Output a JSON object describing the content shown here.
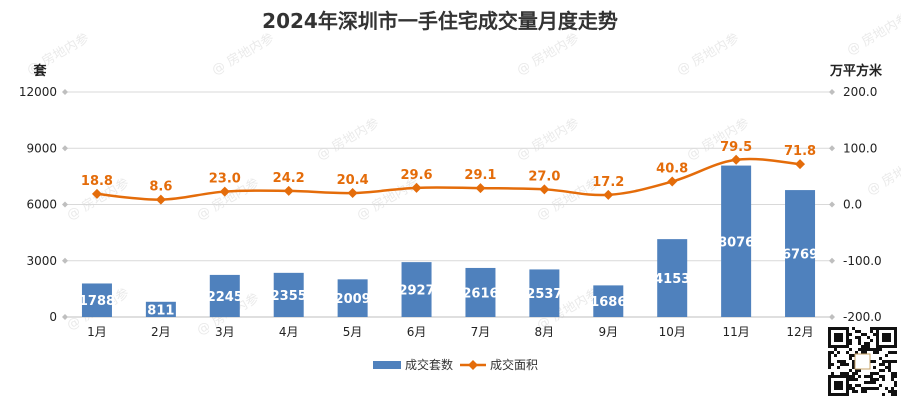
{
  "chart_data": {
    "type": "bar+line",
    "title": "2024年深圳市一手住宅成交量月度走势",
    "categories": [
      "1月",
      "2月",
      "3月",
      "4月",
      "5月",
      "6月",
      "7月",
      "8月",
      "9月",
      "10月",
      "11月",
      "12月"
    ],
    "series": [
      {
        "name": "成交套数",
        "type": "bar",
        "axis": "left",
        "color": "#4F81BD",
        "values": [
          1788,
          811,
          2245,
          2355,
          2009,
          2927,
          2616,
          2537,
          1686,
          4153,
          8076,
          6769
        ]
      },
      {
        "name": "成交面积",
        "type": "line",
        "axis": "right",
        "color": "#E46C0A",
        "values": [
          18.8,
          8.6,
          23.0,
          24.2,
          20.4,
          29.6,
          29.1,
          27.0,
          17.2,
          40.8,
          79.5,
          71.8
        ]
      }
    ],
    "left_axis": {
      "unit": "套",
      "ticks": [
        0,
        3000,
        6000,
        9000,
        12000
      ],
      "range": [
        0,
        12000
      ]
    },
    "right_axis": {
      "unit": "万平方米",
      "ticks": [
        "-200.0",
        "-100.0",
        "0.0",
        "100.0",
        "200.0"
      ],
      "range": [
        -200,
        200
      ]
    },
    "legend_position": "bottom",
    "grid": true
  },
  "watermark": "房地内参"
}
